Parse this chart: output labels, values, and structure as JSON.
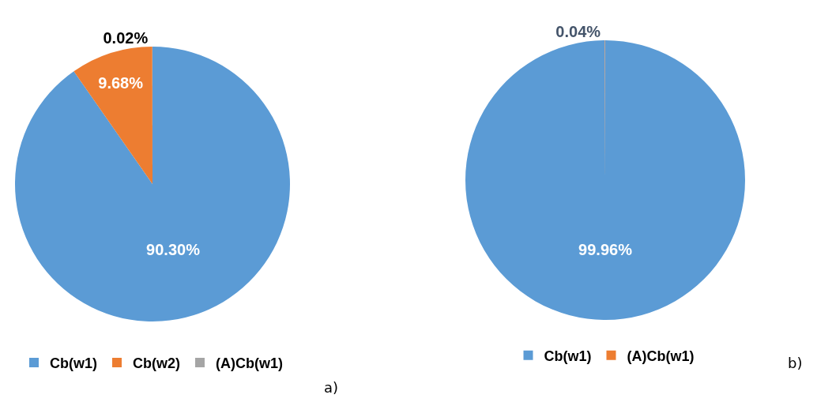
{
  "chart_data": [
    {
      "type": "pie",
      "categories": [
        "Cb(w1)",
        "Cb(w2)",
        "(A)Cb(w1)"
      ],
      "values": [
        90.3,
        9.68,
        0.02
      ],
      "value_labels": [
        "90.30%",
        "9.68%",
        "0.02%"
      ],
      "colors": [
        "#5b9bd5",
        "#ed7d31",
        "#a5a5a5"
      ],
      "legend": "bottom",
      "annotations": [
        "a)"
      ]
    },
    {
      "type": "pie",
      "categories": [
        "Cb(w1)",
        "(A)Cb(w1)"
      ],
      "values": [
        99.96,
        0.04
      ],
      "value_labels": [
        "99.96%",
        "0.04%"
      ],
      "colors": [
        "#5b9bd5",
        "#ed7d31"
      ],
      "legend": "bottom",
      "annotations": [
        "b)"
      ]
    }
  ]
}
